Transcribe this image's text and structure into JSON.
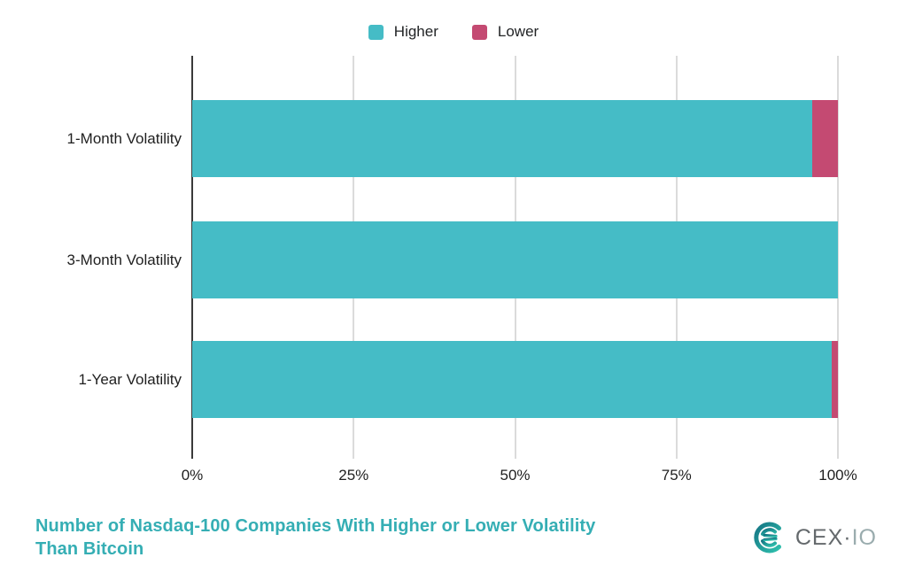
{
  "legend": {
    "items": [
      {
        "label": "Higher",
        "color": "#45BCC6"
      },
      {
        "label": "Lower",
        "color": "#C44A72"
      }
    ]
  },
  "chart_data": {
    "type": "bar",
    "orientation": "horizontal",
    "stacked": true,
    "title": "Number of Nasdaq-100 Companies With Higher or Lower Volatility Than Bitcoin",
    "categories": [
      "1-Month Volatility",
      "3-Month Volatility",
      "1-Year Volatility"
    ],
    "series": [
      {
        "name": "Higher",
        "color": "#45BCC6",
        "values": [
          96,
          100,
          99
        ]
      },
      {
        "name": "Lower",
        "color": "#C44A72",
        "values": [
          4,
          0,
          1
        ]
      }
    ],
    "value_unit": "%",
    "xlim": [
      0,
      100
    ],
    "x_ticks": [
      {
        "value": 0,
        "label": "0%"
      },
      {
        "value": 25,
        "label": "25%"
      },
      {
        "value": 50,
        "label": "50%"
      },
      {
        "value": 75,
        "label": "75%"
      },
      {
        "value": 100,
        "label": "100%"
      }
    ],
    "grid": "vertical",
    "legend_position": "top-center"
  },
  "colors": {
    "grid_line": "#DBDBDB",
    "axis_line": "#3A3A3A"
  },
  "footer": {
    "title_lines": [
      "Number of Nasdaq-100 Companies With Higher or Lower Volatility",
      "Than Bitcoin"
    ],
    "title_color": "#35AEB4",
    "brand": {
      "name": "CEX.IO",
      "wordmark_main": "CEX",
      "wordmark_dot": "·",
      "wordmark_suffix": "IO"
    }
  }
}
